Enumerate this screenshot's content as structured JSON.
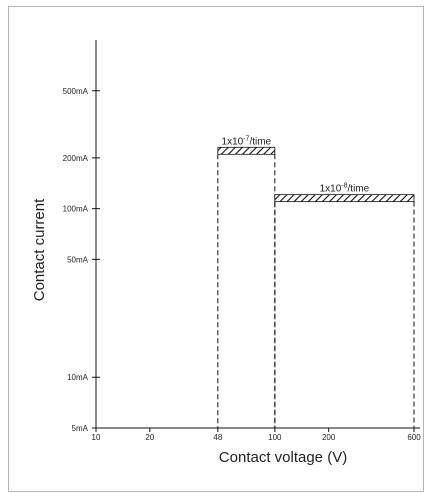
{
  "chart_data": {
    "type": "step-region",
    "xlabel": "Contact voltage (V)",
    "ylabel": "Contact current",
    "x_ticks": [
      {
        "value": 10,
        "label": "10"
      },
      {
        "value": 20,
        "label": "20"
      },
      {
        "value": 48,
        "label": "48"
      },
      {
        "value": 100,
        "label": "100"
      },
      {
        "value": 200,
        "label": "200"
      },
      {
        "value": 600,
        "label": "600"
      }
    ],
    "y_ticks": [
      {
        "value": 5,
        "label": "5mA"
      },
      {
        "value": 10,
        "label": "10mA"
      },
      {
        "value": 50,
        "label": "50mA"
      },
      {
        "value": 100,
        "label": "100mA"
      },
      {
        "value": 200,
        "label": "200mA"
      },
      {
        "value": 500,
        "label": "500mA"
      }
    ],
    "xlim": [
      10,
      600
    ],
    "ylim": [
      5,
      1000
    ],
    "x_scale": "log",
    "y_scale": "log",
    "regions": [
      {
        "x_start": 48,
        "x_end": 100,
        "y": 210,
        "label_base": "1x10",
        "label_exp": "-7",
        "label_unit": "/time"
      },
      {
        "x_start": 100,
        "x_end": 600,
        "y": 110,
        "label_base": "1x10",
        "label_exp": "-8",
        "label_unit": "/time"
      }
    ],
    "grid": false,
    "legend": "none"
  }
}
